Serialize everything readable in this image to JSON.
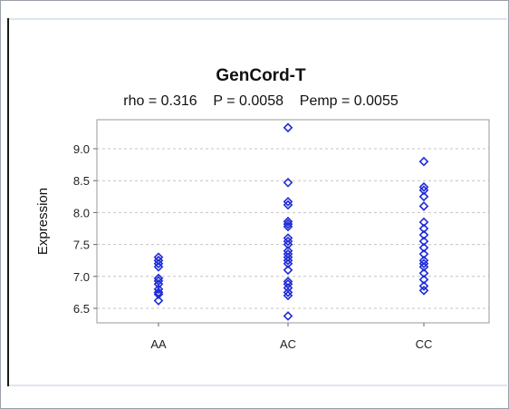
{
  "chart_data": {
    "type": "scatter",
    "title": "GenCord-T",
    "subtitle": "rho = 0.316    P = 0.0058    Pemp = 0.0055",
    "xlabel": "",
    "ylabel": "Expression",
    "categories": [
      "AA",
      "AC",
      "CC"
    ],
    "ylim": [
      6.25,
      9.4
    ],
    "yticks": [
      "9.0",
      "8.5",
      "8.0",
      "7.5",
      "7.0",
      "6.5"
    ],
    "grid": true,
    "marker_color": "#1f2bd6",
    "series": [
      {
        "values": [
          [
            7.3,
            7.25,
            7.2,
            7.15,
            6.97,
            6.93,
            6.88,
            6.8,
            6.75,
            6.72,
            6.62
          ],
          [
            9.33,
            8.47,
            8.17,
            8.12,
            7.86,
            7.82,
            7.78,
            7.6,
            7.55,
            7.5,
            7.4,
            7.35,
            7.3,
            7.25,
            7.2,
            7.1,
            6.92,
            6.88,
            6.82,
            6.75,
            6.7,
            6.38
          ],
          [
            8.8,
            8.4,
            8.35,
            8.25,
            8.1,
            7.85,
            7.75,
            7.65,
            7.55,
            7.45,
            7.35,
            7.25,
            7.2,
            7.15,
            7.05,
            6.95,
            6.85,
            6.78
          ]
        ]
      }
    ]
  }
}
